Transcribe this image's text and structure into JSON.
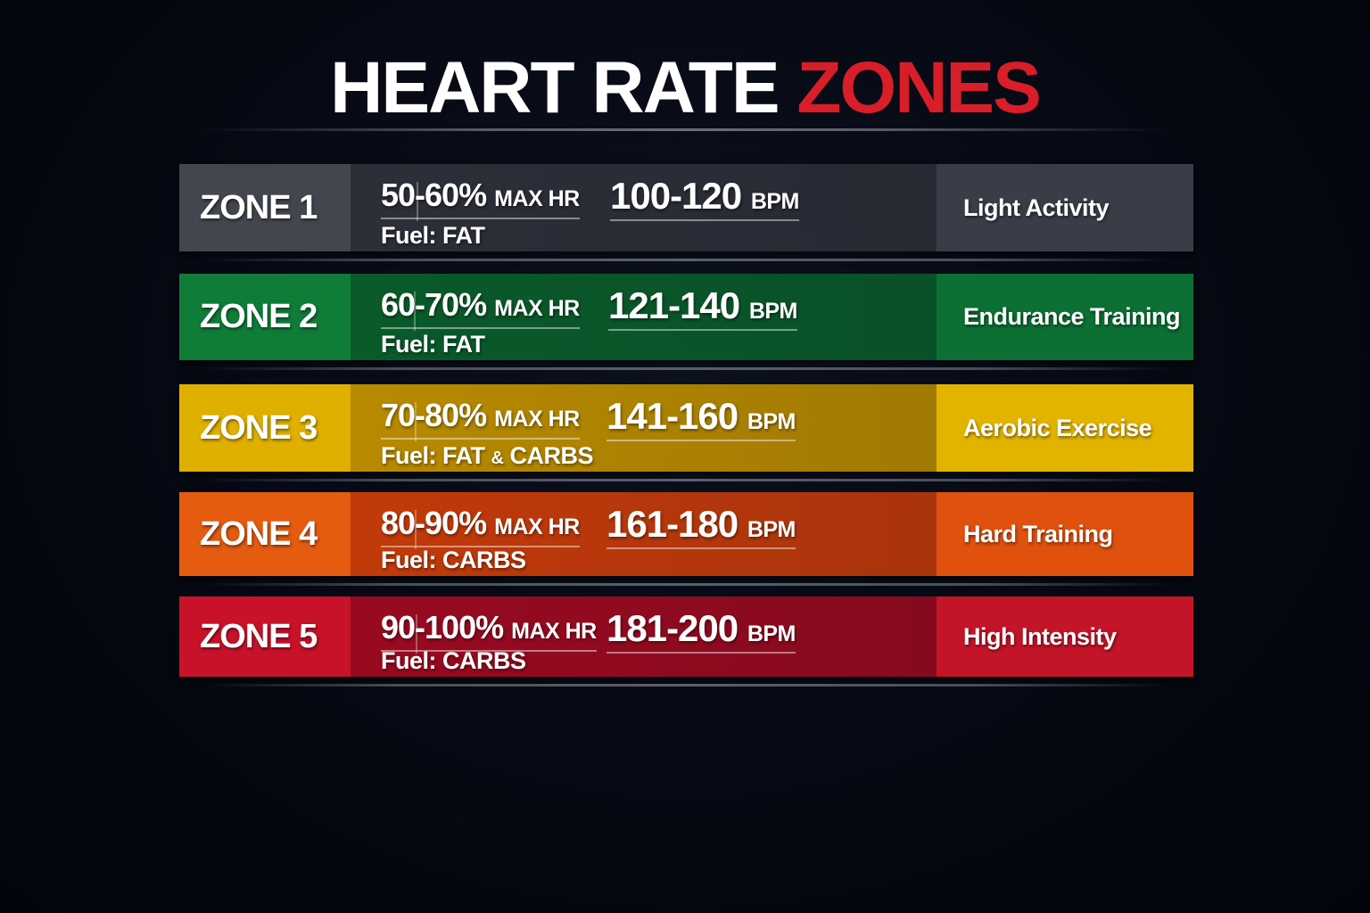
{
  "title": {
    "part1": "HEART RATE",
    "part2": "ZONES",
    "accent_color": "#d81e28"
  },
  "zones": [
    {
      "label": "ZONE 1",
      "pct": "50-60%",
      "pct_unit": "MAX HR",
      "bpm": "100-120",
      "bpm_unit": "BPM",
      "fuel_label": "Fuel:",
      "fuel": "FAT",
      "fuel2": "",
      "amp": "",
      "activity": "Light Activity",
      "colors": {
        "left": "#44464f",
        "mid": "#2c2e38",
        "right": "#3a3c47"
      }
    },
    {
      "label": "ZONE 2",
      "pct": "60-70%",
      "pct_unit": "MAX HR",
      "bpm": "121-140",
      "bpm_unit": "BPM",
      "fuel_label": "Fuel:",
      "fuel": "FAT",
      "fuel2": "",
      "amp": "",
      "activity": "Endurance Training",
      "colors": {
        "left": "#0f7c38",
        "mid": "#0a5a2a",
        "right": "#0c6f33"
      }
    },
    {
      "label": "ZONE 3",
      "pct": "70-80%",
      "pct_unit": "MAX HR",
      "bpm": "141-160",
      "bpm_unit": "BPM",
      "fuel_label": "Fuel:",
      "fuel": "FAT",
      "fuel2": "CARBS",
      "amp": "&",
      "activity": "Aerobic Exercise",
      "colors": {
        "left": "#e0b000",
        "mid": "#b88a00",
        "right": "#e2b400"
      }
    },
    {
      "label": "ZONE 4",
      "pct": "80-90%",
      "pct_unit": "MAX HR",
      "bpm": "161-180",
      "bpm_unit": "BPM",
      "fuel_label": "Fuel:",
      "fuel": "CARBS",
      "fuel2": "",
      "amp": "",
      "activity": "Hard Training",
      "colors": {
        "left": "#e55b10",
        "mid": "#c23a0a",
        "right": "#e0510e"
      }
    },
    {
      "label": "ZONE 5",
      "pct": "90-100%",
      "pct_unit": "MAX HR",
      "bpm": "181-200",
      "bpm_unit": "BPM",
      "fuel_label": "Fuel:",
      "fuel": "CARBS",
      "fuel2": "",
      "amp": "",
      "activity": "High Intensity",
      "colors": {
        "left": "#c8122a",
        "mid": "#990a20",
        "right": "#c41428"
      }
    }
  ]
}
